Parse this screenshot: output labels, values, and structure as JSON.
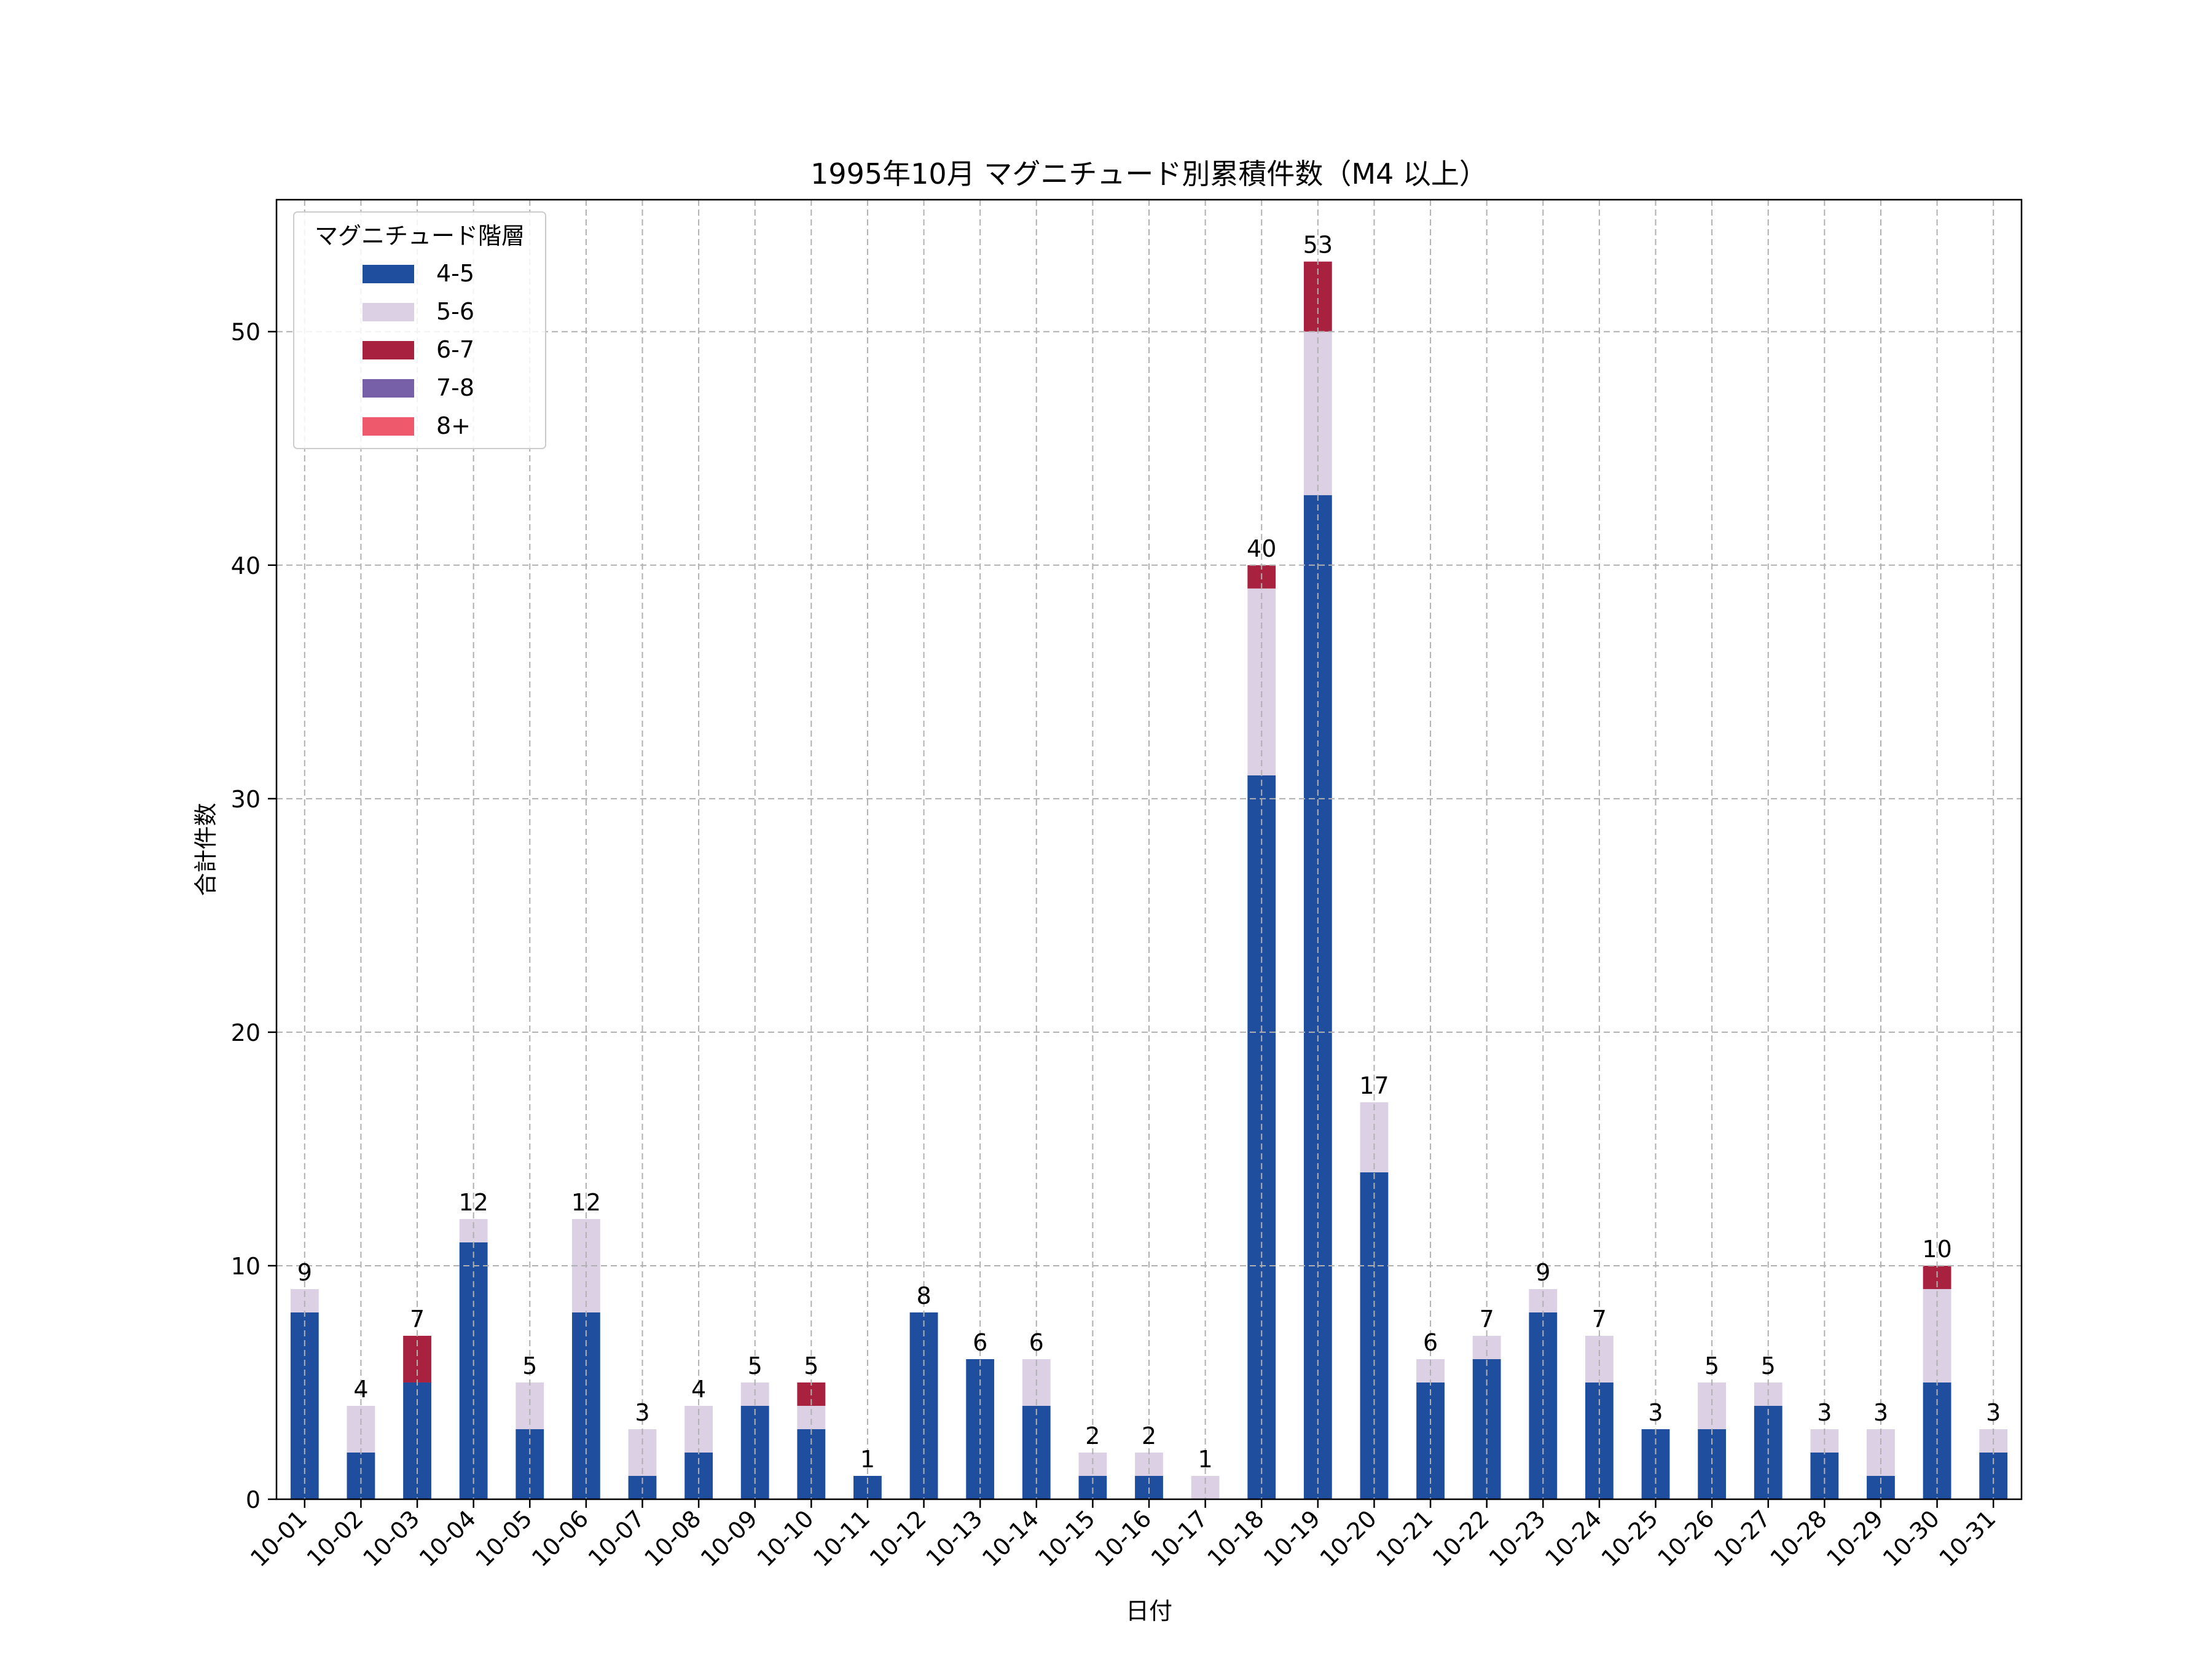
{
  "chart_data": {
    "type": "bar",
    "stacked": true,
    "title": "1995年10月 マグニチュード別累積件数（M4 以上）",
    "xlabel": "日付",
    "ylabel": "合計件数",
    "ylim": [
      0,
      55.65
    ],
    "yticks": [
      0,
      10,
      20,
      30,
      40,
      50
    ],
    "grid": true,
    "legend": {
      "title": "マグニチュード階層",
      "placement": "top-left"
    },
    "categories": [
      "10-01",
      "10-02",
      "10-03",
      "10-04",
      "10-05",
      "10-06",
      "10-07",
      "10-08",
      "10-09",
      "10-10",
      "10-11",
      "10-12",
      "10-13",
      "10-14",
      "10-15",
      "10-16",
      "10-17",
      "10-18",
      "10-19",
      "10-20",
      "10-21",
      "10-22",
      "10-23",
      "10-24",
      "10-25",
      "10-26",
      "10-27",
      "10-28",
      "10-29",
      "10-30",
      "10-31"
    ],
    "series": [
      {
        "name": "4-5",
        "color": "#1f4e9e",
        "values": [
          8,
          2,
          5,
          11,
          3,
          8,
          1,
          2,
          4,
          3,
          1,
          8,
          6,
          4,
          1,
          1,
          0,
          31,
          43,
          14,
          5,
          6,
          8,
          5,
          3,
          3,
          4,
          2,
          1,
          5,
          2
        ]
      },
      {
        "name": "5-6",
        "color": "#dcd0e5",
        "values": [
          1,
          2,
          0,
          1,
          2,
          4,
          2,
          2,
          1,
          1,
          0,
          0,
          0,
          2,
          1,
          1,
          1,
          8,
          7,
          3,
          1,
          1,
          1,
          2,
          0,
          2,
          1,
          1,
          2,
          4,
          1
        ]
      },
      {
        "name": "6-7",
        "color": "#a8213f",
        "values": [
          0,
          0,
          2,
          0,
          0,
          0,
          0,
          0,
          0,
          1,
          0,
          0,
          0,
          0,
          0,
          0,
          0,
          1,
          3,
          0,
          0,
          0,
          0,
          0,
          0,
          0,
          0,
          0,
          0,
          1,
          0
        ]
      },
      {
        "name": "7-8",
        "color": "#7760a8",
        "values": [
          0,
          0,
          0,
          0,
          0,
          0,
          0,
          0,
          0,
          0,
          0,
          0,
          0,
          0,
          0,
          0,
          0,
          0,
          0,
          0,
          0,
          0,
          0,
          0,
          0,
          0,
          0,
          0,
          0,
          0,
          0
        ]
      },
      {
        "name": "8+",
        "color": "#ee5a6c",
        "values": [
          0,
          0,
          0,
          0,
          0,
          0,
          0,
          0,
          0,
          0,
          0,
          0,
          0,
          0,
          0,
          0,
          0,
          0,
          0,
          0,
          0,
          0,
          0,
          0,
          0,
          0,
          0,
          0,
          0,
          0,
          0
        ]
      }
    ],
    "totals": [
      9,
      4,
      7,
      12,
      5,
      12,
      3,
      4,
      5,
      5,
      1,
      8,
      6,
      6,
      2,
      2,
      1,
      40,
      53,
      17,
      6,
      7,
      9,
      7,
      3,
      5,
      5,
      3,
      3,
      10,
      3
    ]
  }
}
